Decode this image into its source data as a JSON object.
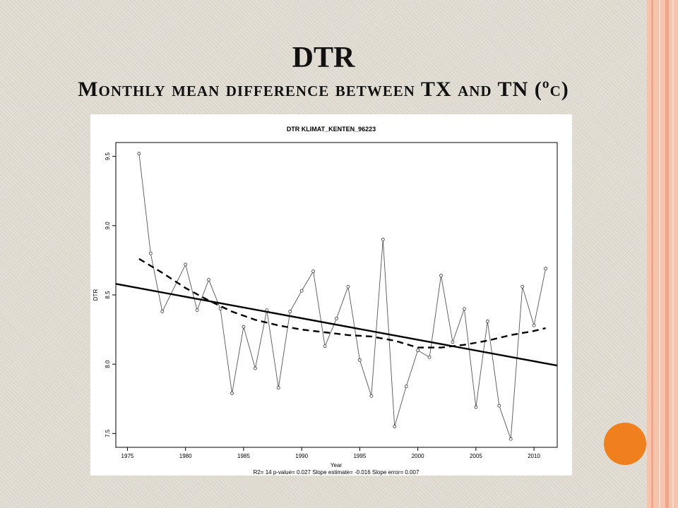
{
  "slide": {
    "title": "DTR",
    "subtitle": "Monthly mean difference between TX and TN (ºc)"
  },
  "colors": {
    "background": "#e2ddd3",
    "accent_stripe": "#f4c4ac",
    "orange_circle": "#f0801e"
  },
  "chart_data": {
    "type": "line",
    "title": "DTR   KLIMAT_KENTEN_96223",
    "xlabel": "Year",
    "ylabel": "DTR",
    "xlim": [
      1974,
      2012
    ],
    "ylim": [
      7.4,
      9.6
    ],
    "x_ticks": [
      1975,
      1980,
      1985,
      1990,
      1995,
      2000,
      2005,
      2010
    ],
    "y_ticks": [
      7.5,
      8.0,
      8.5,
      9.0,
      9.5
    ],
    "grid": false,
    "legend": "none",
    "footer": "R2= 14  p-value= 0.027  Slope estimate= -0.016  Slope error= 0.007",
    "series": [
      {
        "style": "line-with-points",
        "x": [
          1976,
          1977,
          1978,
          1980,
          1981,
          1982,
          1983,
          1984,
          1985,
          1986,
          1987,
          1988,
          1989,
          1990,
          1991,
          1992,
          1993,
          1994,
          1995,
          1996,
          1997,
          1998,
          1999,
          2000,
          2001,
          2002,
          2003,
          2004,
          2005,
          2006,
          2007,
          2008,
          2009,
          2010,
          2011
        ],
        "y": [
          9.52,
          8.8,
          8.38,
          8.72,
          8.39,
          8.61,
          8.4,
          7.79,
          8.27,
          7.97,
          8.39,
          7.83,
          8.38,
          8.53,
          8.67,
          8.13,
          8.33,
          8.56,
          8.03,
          7.77,
          8.9,
          7.55,
          7.84,
          8.1,
          8.05,
          8.64,
          8.16,
          8.4,
          7.69,
          8.31,
          7.7,
          7.46,
          8.56,
          8.28,
          8.69
        ]
      },
      {
        "style": "trend-line",
        "x": [
          1974,
          2012
        ],
        "y": [
          8.58,
          7.99
        ]
      },
      {
        "style": "smoothed-dashed",
        "x": [
          1976,
          1978,
          1980,
          1982,
          1984,
          1986,
          1988,
          1990,
          1992,
          1994,
          1996,
          1998,
          2000,
          2002,
          2004,
          2006,
          2008,
          2010,
          2011
        ],
        "y": [
          8.76,
          8.66,
          8.55,
          8.46,
          8.38,
          8.32,
          8.28,
          8.25,
          8.23,
          8.21,
          8.2,
          8.17,
          8.12,
          8.12,
          8.14,
          8.17,
          8.21,
          8.24,
          8.26
        ]
      }
    ]
  }
}
